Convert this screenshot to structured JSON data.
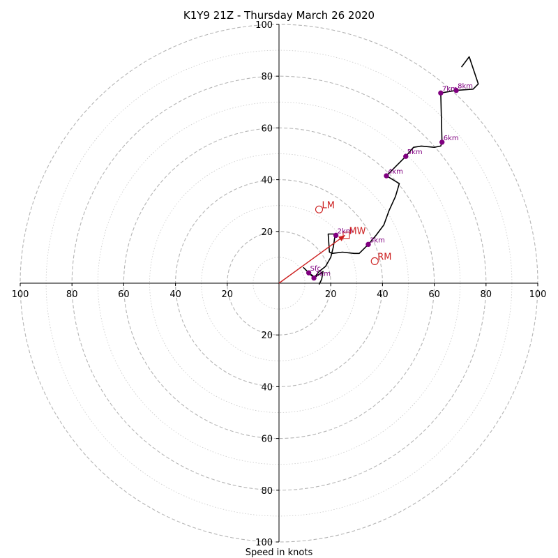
{
  "chart_data": {
    "type": "hodograph",
    "title": "K1Y9 21Z - Thursday March 26 2020",
    "xlabel": "Speed in knots",
    "ring_max": 100,
    "ring_major_step": 20,
    "ring_minor_step": 10,
    "tick_labels": [
      "20",
      "40",
      "60",
      "80",
      "100"
    ],
    "hodograph": {
      "color": "#000000",
      "points": [
        [
          15.5,
          -0.5
        ],
        [
          16.5,
          1.5
        ],
        [
          17,
          4.5
        ],
        [
          13.5,
          2
        ],
        [
          13,
          3
        ],
        [
          12,
          3.5
        ],
        [
          9.5,
          6
        ],
        [
          13.5,
          2
        ],
        [
          15.5,
          4.5
        ],
        [
          18,
          6.5
        ],
        [
          20,
          10
        ],
        [
          21,
          14
        ],
        [
          21.5,
          17.5
        ],
        [
          22,
          19
        ],
        [
          19,
          19
        ],
        [
          19.5,
          12
        ],
        [
          20.5,
          11.5
        ],
        [
          24.5,
          12
        ],
        [
          29,
          11.5
        ],
        [
          31,
          11.5
        ],
        [
          34.5,
          15
        ],
        [
          37.5,
          18.5
        ],
        [
          40.5,
          22.5
        ],
        [
          42.5,
          28
        ],
        [
          45,
          33.5
        ],
        [
          46.5,
          38.5
        ],
        [
          41.5,
          41.5
        ],
        [
          44,
          44
        ],
        [
          48.5,
          48.5
        ],
        [
          52,
          52.5
        ],
        [
          55,
          53
        ],
        [
          60,
          52.5
        ],
        [
          62.5,
          53
        ],
        [
          63,
          54.5
        ],
        [
          62.5,
          73.5
        ],
        [
          68.5,
          74.5
        ],
        [
          75,
          75
        ],
        [
          77,
          77
        ],
        [
          73.5,
          87.5
        ],
        [
          70.5,
          83.5
        ]
      ]
    },
    "height_markers": {
      "color": "#800080",
      "items": [
        {
          "label": "Sfc",
          "x": 11.5,
          "y": 4
        },
        {
          "label": "1km",
          "x": 13.5,
          "y": 2
        },
        {
          "label": "2km",
          "x": 22,
          "y": 18.5
        },
        {
          "label": "3km",
          "x": 34.5,
          "y": 15
        },
        {
          "label": "4km",
          "x": 41.5,
          "y": 41.5
        },
        {
          "label": "5km",
          "x": 49,
          "y": 49
        },
        {
          "label": "6km",
          "x": 63,
          "y": 54.5
        },
        {
          "label": "7km",
          "x": 62.5,
          "y": 73.5
        },
        {
          "label": "8km",
          "x": 68.5,
          "y": 74.5
        }
      ]
    },
    "storm_motion": {
      "color": "#cc1f1f",
      "vector_from": [
        0,
        0
      ],
      "vector_to": [
        25.5,
        18.5
      ],
      "markers": [
        {
          "label": "LM",
          "x": 15.5,
          "y": 28.5,
          "symbol": "circle"
        },
        {
          "label": "MW",
          "x": 26,
          "y": 18.5,
          "symbol": "square"
        },
        {
          "label": "RM",
          "x": 37,
          "y": 8.5,
          "symbol": "circle"
        }
      ]
    }
  }
}
